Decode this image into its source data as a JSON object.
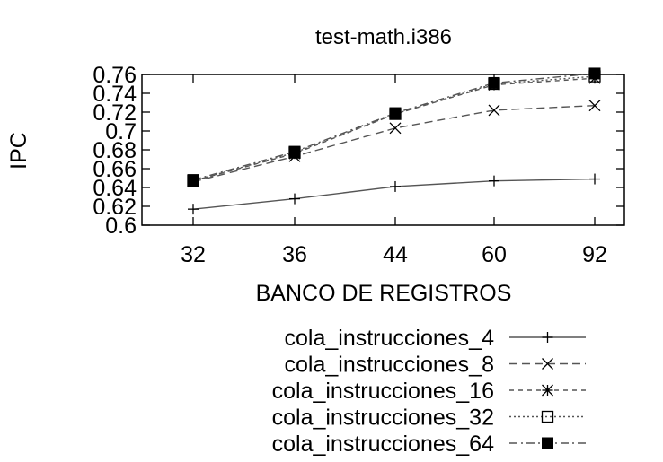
{
  "chart_data": {
    "type": "line",
    "title": "test-math.i386",
    "xlabel": "BANCO DE REGISTROS",
    "ylabel": "IPC",
    "categories": [
      "32",
      "36",
      "44",
      "60",
      "92"
    ],
    "ylim": [
      0.6,
      0.76
    ],
    "yticks": [
      "0.6",
      "0.62",
      "0.64",
      "0.66",
      "0.68",
      "0.7",
      "0.72",
      "0.74",
      "0.76"
    ],
    "grid": false,
    "legend_position": "below",
    "series": [
      {
        "name": "cola_instrucciones_4",
        "marker": "plus",
        "dash": "solid",
        "values": [
          0.617,
          0.628,
          0.641,
          0.647,
          0.649
        ]
      },
      {
        "name": "cola_instrucciones_8",
        "marker": "cross",
        "dash": "dashed",
        "values": [
          0.646,
          0.673,
          0.703,
          0.722,
          0.727
        ]
      },
      {
        "name": "cola_instrucciones_16",
        "marker": "star",
        "dash": "shortdash",
        "values": [
          0.647,
          0.676,
          0.718,
          0.749,
          0.756
        ]
      },
      {
        "name": "cola_instrucciones_32",
        "marker": "open-square",
        "dash": "dotted",
        "values": [
          0.647,
          0.677,
          0.718,
          0.75,
          0.758
        ]
      },
      {
        "name": "cola_instrucciones_64",
        "marker": "filled-square",
        "dash": "dashdot",
        "values": [
          0.648,
          0.678,
          0.719,
          0.751,
          0.761
        ]
      }
    ],
    "line_color": "#555555",
    "marker_color": "#000000"
  }
}
